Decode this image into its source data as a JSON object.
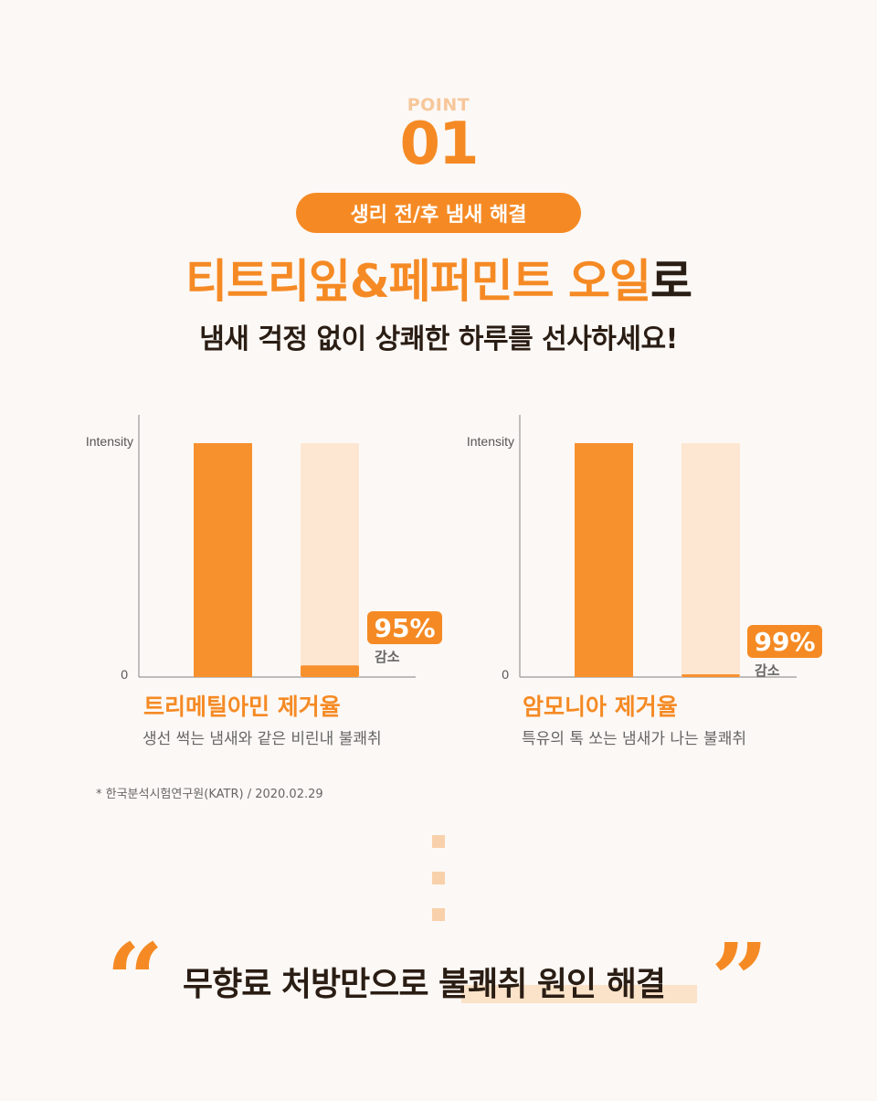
{
  "point": {
    "label": "POINT",
    "number": "01"
  },
  "pill_label": "생리 전/후 냄새 해결",
  "headline": {
    "highlight": "티트리잎&페퍼민트 오일",
    "suffix": "로"
  },
  "subheadline": "냄새 걱정 없이 상쾌한 하루를 선사하세요!",
  "chart_data": [
    {
      "type": "bar",
      "ylabel": "Intensity",
      "ytick_zero": "0",
      "categories": [
        "",
        ""
      ],
      "values": [
        100,
        5
      ],
      "ylim": [
        0,
        100
      ],
      "reduction_label": "95%",
      "reduction_caption": "감소",
      "title": "트리메틸아민 제거율",
      "description": "생선 썩는 냄새와 같은 비린내 불쾌취"
    },
    {
      "type": "bar",
      "ylabel": "Intensity",
      "ytick_zero": "0",
      "categories": [
        "",
        ""
      ],
      "values": [
        100,
        1
      ],
      "ylim": [
        0,
        100
      ],
      "reduction_label": "99%",
      "reduction_caption": "감소",
      "title": "암모니아 제거율",
      "description": "특유의 톡 쏘는 냄새가 나는 불쾌취"
    }
  ],
  "source_note": "* 한국분석시험연구원(KATR) / 2020.02.29",
  "closing": {
    "open_quote": "“",
    "close_quote": "”",
    "part1": "무향료 처방만으로 ",
    "part2": "불쾌취 원인 해결"
  },
  "colors": {
    "accent": "#f58a24",
    "bar_before": "#f7912e",
    "bar_ghost": "#fde7d2",
    "background": "#fcf8f5",
    "text_dark": "#2a1d14"
  }
}
